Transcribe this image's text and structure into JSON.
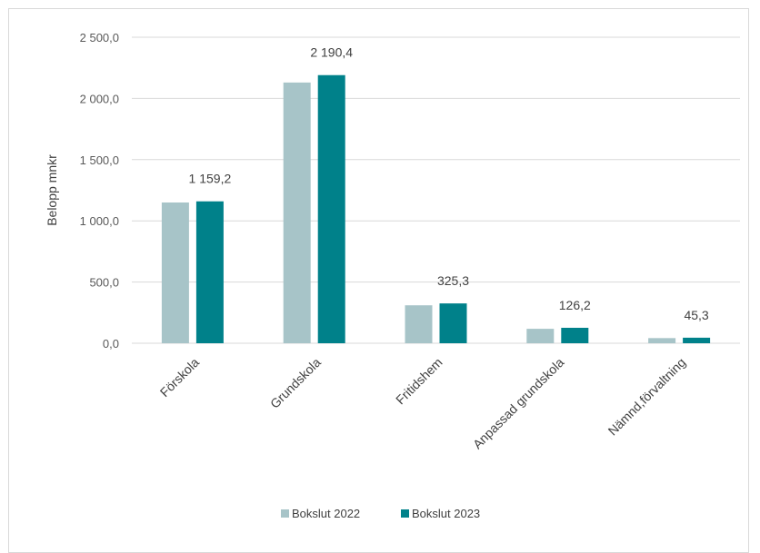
{
  "chart_data": {
    "type": "bar",
    "ylabel": "Belopp mnkr",
    "categories": [
      "Förskola",
      "Grundskola",
      "Fritidshem",
      "Anpassad grundskola",
      "Nämnd,förvaltning"
    ],
    "series": [
      {
        "name": "Bokslut 2022",
        "color": "#a7c4c8",
        "values": [
          1150,
          2130,
          310,
          118,
          42
        ]
      },
      {
        "name": "Bokslut 2023",
        "color": "#00818a",
        "values": [
          1159.2,
          2190.4,
          325.3,
          126.2,
          45.3
        ]
      }
    ],
    "data_labels": [
      "1 159,2",
      "2 190,4",
      "325,3",
      "126,2",
      "45,3"
    ],
    "y_ticks": [
      "0,0",
      "500,0",
      "1 000,0",
      "1 500,0",
      "2 000,0",
      "2 500,0"
    ],
    "y_tick_values": [
      0,
      500,
      1000,
      1500,
      2000,
      2500
    ],
    "ylim": [
      0,
      2500
    ],
    "grid": true,
    "legend": "bottom"
  }
}
